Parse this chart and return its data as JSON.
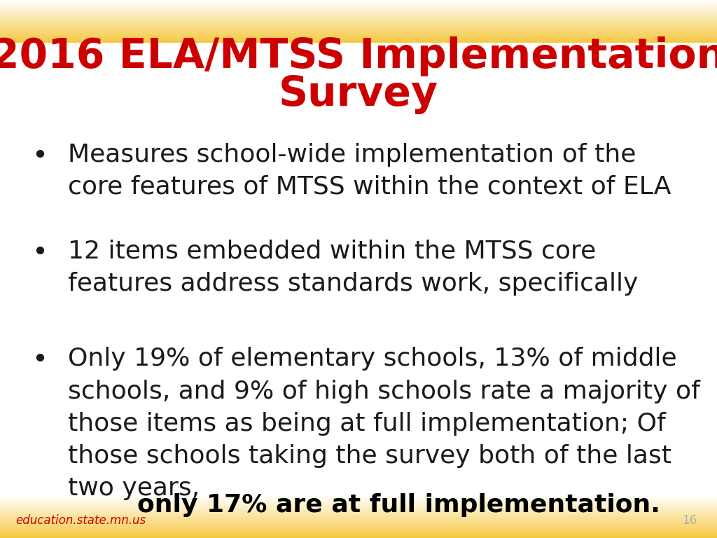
{
  "title_line1": "2016 ELA/MTSS Implementation",
  "title_line2": "Survey",
  "title_color": "#cc0000",
  "title_fontsize": 42,
  "bullet_fontsize": 26,
  "bullet_color": "#1a1a1a",
  "bullet_bold_color": "#000000",
  "background_color": "#ffffff",
  "footer_text": "education.state.mn.us",
  "footer_text_color": "#cc0000",
  "footer_fontsize": 12,
  "page_number": "16",
  "page_number_color": "#b0b0b0",
  "page_number_fontsize": 12,
  "header_color_gold": [
    0.961,
    0.784,
    0.259
  ],
  "footer_color_gold": [
    0.961,
    0.784,
    0.259
  ],
  "bullets": [
    {
      "normal": "Measures school-wide implementation of the\ncore features of MTSS within the context of ELA",
      "bold": ""
    },
    {
      "normal": "12 items embedded within the MTSS core\nfeatures address standards work, specifically",
      "bold": ""
    },
    {
      "normal": "Only 19% of elementary schools, 13% of middle\nschools, and 9% of high schools rate a majority of\nthose items as being at full implementation; Of\nthose schools taking the survey both of the last\ntwo years, ",
      "bold": "only 17% are at full implementation."
    }
  ]
}
